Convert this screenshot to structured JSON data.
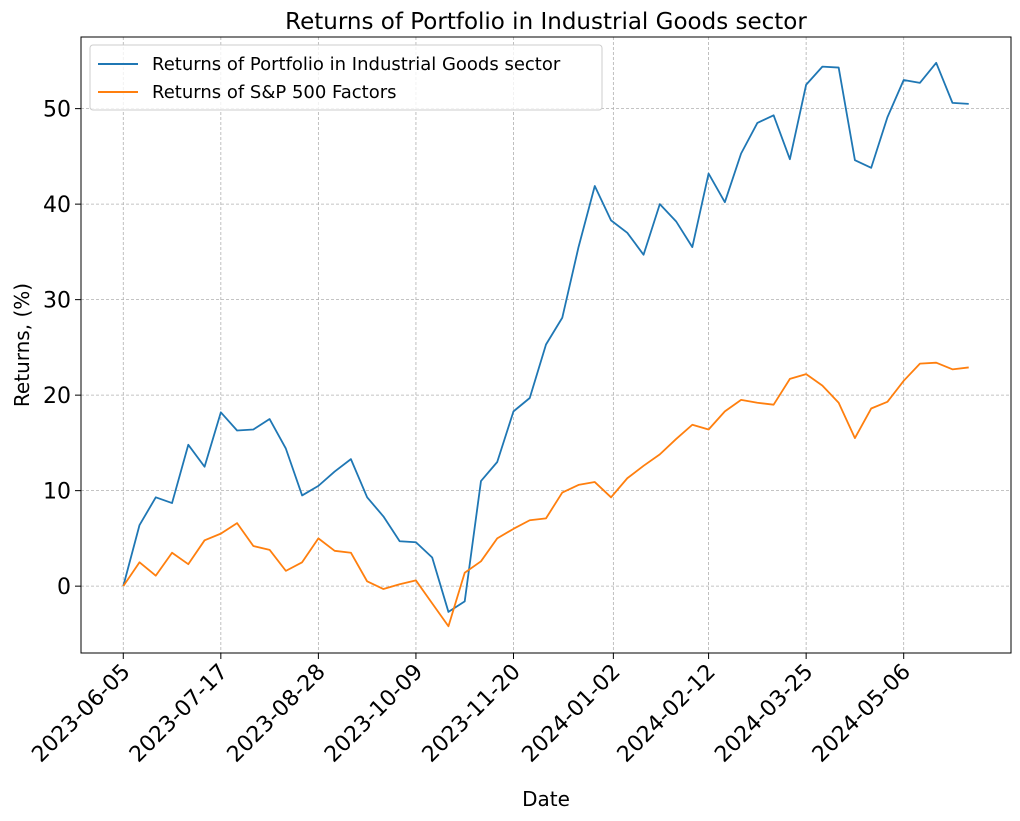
{
  "chart_data": {
    "type": "line",
    "title": "Returns of Portfolio in Industrial Goods sector",
    "xlabel": "Date",
    "ylabel": "Returns, (%)",
    "grid": true,
    "legend_position": "top-left",
    "ylim": [
      -7,
      57.5
    ],
    "y_ticks": [
      0,
      10,
      20,
      30,
      40,
      50
    ],
    "x_ticks": [
      "2023-06-05",
      "2023-07-17",
      "2023-08-28",
      "2023-10-09",
      "2023-11-20",
      "2024-01-02",
      "2024-02-12",
      "2024-03-25",
      "2024-05-06"
    ],
    "x": [
      "2023-06-05",
      "2023-06-12",
      "2023-06-19",
      "2023-06-26",
      "2023-07-03",
      "2023-07-10",
      "2023-07-17",
      "2023-07-24",
      "2023-07-31",
      "2023-08-07",
      "2023-08-14",
      "2023-08-21",
      "2023-08-28",
      "2023-09-04",
      "2023-09-11",
      "2023-09-18",
      "2023-09-25",
      "2023-10-02",
      "2023-10-09",
      "2023-10-16",
      "2023-10-23",
      "2023-10-30",
      "2023-11-06",
      "2023-11-13",
      "2023-11-20",
      "2023-11-27",
      "2023-12-04",
      "2023-12-11",
      "2023-12-18",
      "2023-12-25",
      "2024-01-01",
      "2024-01-08",
      "2024-01-15",
      "2024-01-22",
      "2024-01-29",
      "2024-02-05",
      "2024-02-12",
      "2024-02-19",
      "2024-02-26",
      "2024-03-04",
      "2024-03-11",
      "2024-03-18",
      "2024-03-25",
      "2024-04-01",
      "2024-04-08",
      "2024-04-15",
      "2024-04-22",
      "2024-04-29",
      "2024-05-06",
      "2024-05-13",
      "2024-05-20",
      "2024-05-27",
      "2024-06-03"
    ],
    "series": [
      {
        "name": "Returns of Portfolio in Industrial Goods sector",
        "color": "#1f77b4",
        "values": [
          0.0,
          6.4,
          9.3,
          8.7,
          14.8,
          12.5,
          18.2,
          16.3,
          16.4,
          17.5,
          14.4,
          9.5,
          10.5,
          12.0,
          13.3,
          9.3,
          7.3,
          4.7,
          4.6,
          3.0,
          -2.7,
          -1.6,
          11.0,
          13.0,
          18.3,
          19.7,
          25.3,
          28.1,
          35.5,
          41.9,
          38.3,
          37.0,
          34.7,
          40.0,
          38.2,
          35.5,
          43.2,
          40.2,
          45.3,
          48.5,
          49.3,
          44.7,
          52.5,
          54.4,
          54.3,
          44.6,
          43.8,
          49.1,
          53.0,
          52.7,
          54.8,
          50.6,
          50.5
        ]
      },
      {
        "name": "Returns of S&P 500 Factors",
        "color": "#ff7f0e",
        "values": [
          0.0,
          2.5,
          1.1,
          3.5,
          2.3,
          4.8,
          5.5,
          6.6,
          4.2,
          3.8,
          1.6,
          2.5,
          5.0,
          3.7,
          3.5,
          0.5,
          -0.3,
          0.2,
          0.6,
          -1.8,
          -4.2,
          1.4,
          2.6,
          5.0,
          6.0,
          6.9,
          7.1,
          9.8,
          10.6,
          10.9,
          9.3,
          11.3,
          12.6,
          13.8,
          15.4,
          16.9,
          16.4,
          18.3,
          19.5,
          19.2,
          19.0,
          21.7,
          22.2,
          21.0,
          19.2,
          15.5,
          18.6,
          19.3,
          21.5,
          23.3,
          23.4,
          22.7,
          22.9
        ]
      }
    ]
  }
}
